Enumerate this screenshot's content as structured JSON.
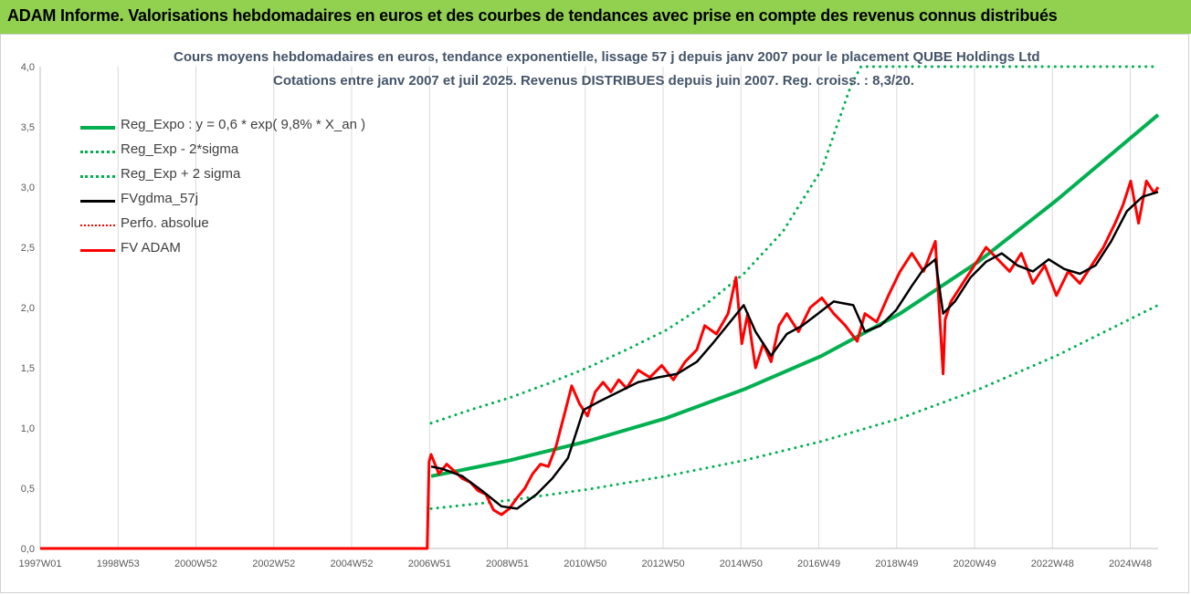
{
  "header": {
    "title": "ADAM Informe. Valorisations hebdomadaires en euros et des courbes de tendances avec prise en compte des revenus connus distribués",
    "background": "#92d050"
  },
  "chart_data": {
    "type": "line",
    "title": "Cours moyens hebdomadaires en euros, tendance exponentielle, lissage 57 j depuis janv 2007 pour le placement QUBE Holdings Ltd",
    "subtitle": "Cotations entre janv 2007 et juil 2025. Revenus DISTRIBUES depuis juin 2007. Reg. croiss. : 8,3/20.",
    "xlabel": "",
    "ylabel": "",
    "ylim": [
      0,
      4
    ],
    "y_ticks": [
      "0,0",
      "0,5",
      "1,0",
      "1,5",
      "2,0",
      "2,5",
      "3,0",
      "3,5",
      "4,0"
    ],
    "x_ticks": [
      "1997W01",
      "1998W53",
      "2000W52",
      "2002W52",
      "2004W52",
      "2006W51",
      "2008W51",
      "2010W50",
      "2012W50",
      "2014W50",
      "2016W49",
      "2018W49",
      "2020W49",
      "2022W48",
      "2024W48"
    ],
    "xlim": [
      1997.0,
      2025.6
    ],
    "grid": "vertical",
    "legend_position": "top-left",
    "series": [
      {
        "name": "Reg_Expo : y = 0,6 * exp( 9,8% *  X_an )",
        "color": "#00b050",
        "style": "solid",
        "width": 4,
        "x": [
          2007.0,
          2009.0,
          2011.0,
          2013.0,
          2015.0,
          2017.0,
          2019.0,
          2021.0,
          2023.0,
          2025.6
        ],
        "y": [
          0.6,
          0.73,
          0.89,
          1.08,
          1.32,
          1.6,
          1.95,
          2.38,
          2.89,
          3.6
        ]
      },
      {
        "name": "Reg_Exp - 2*sigma",
        "color": "#00b050",
        "style": "dotted",
        "width": 3,
        "x": [
          2007.0,
          2009.0,
          2011.0,
          2013.0,
          2015.0,
          2017.0,
          2019.0,
          2021.0,
          2023.0,
          2025.6
        ],
        "y": [
          0.33,
          0.4,
          0.49,
          0.6,
          0.73,
          0.89,
          1.08,
          1.32,
          1.6,
          2.02
        ]
      },
      {
        "name": "Reg_Exp + 2 sigma",
        "color": "#00b050",
        "style": "dotted",
        "width": 3,
        "x": [
          2007.0,
          2008.0,
          2009.0,
          2010.0,
          2011.0,
          2012.0,
          2013.0,
          2014.0,
          2015.0,
          2016.0,
          2017.0,
          2017.75,
          2018.0,
          2021.0,
          2025.6
        ],
        "y": [
          1.04,
          1.15,
          1.25,
          1.37,
          1.5,
          1.65,
          1.81,
          2.02,
          2.28,
          2.63,
          3.15,
          3.85,
          4.0,
          4.0,
          4.0
        ]
      },
      {
        "name": "FVgdma_57j",
        "color": "#000000",
        "style": "solid",
        "width": 2.5,
        "x": [
          2007.0,
          2007.3,
          2007.8,
          2008.3,
          2008.8,
          2009.2,
          2009.7,
          2010.1,
          2010.5,
          2010.9,
          2011.3,
          2011.8,
          2012.3,
          2012.8,
          2013.3,
          2013.8,
          2014.2,
          2014.7,
          2015.0,
          2015.3,
          2015.7,
          2016.1,
          2016.5,
          2016.9,
          2017.3,
          2017.8,
          2018.1,
          2018.5,
          2018.9,
          2019.3,
          2019.6,
          2019.9,
          2020.1,
          2020.4,
          2020.8,
          2021.2,
          2021.6,
          2022.0,
          2022.4,
          2022.8,
          2023.2,
          2023.6,
          2024.0,
          2024.4,
          2024.8,
          2025.2,
          2025.6
        ],
        "y": [
          0.68,
          0.66,
          0.6,
          0.48,
          0.35,
          0.33,
          0.45,
          0.58,
          0.75,
          1.15,
          1.22,
          1.3,
          1.38,
          1.42,
          1.45,
          1.55,
          1.7,
          1.9,
          2.02,
          1.8,
          1.6,
          1.78,
          1.85,
          1.95,
          2.05,
          2.02,
          1.8,
          1.85,
          1.98,
          2.18,
          2.32,
          2.4,
          1.95,
          2.05,
          2.25,
          2.38,
          2.45,
          2.35,
          2.3,
          2.4,
          2.32,
          2.28,
          2.35,
          2.55,
          2.8,
          2.92,
          2.96
        ]
      },
      {
        "name": "Perfo. absolue",
        "color": "#ff0000",
        "style": "dotted",
        "width": 2,
        "x": [],
        "y": []
      },
      {
        "name": "FV ADAM",
        "color": "#ff0000",
        "style": "solid",
        "width": 3,
        "x": [
          1997.0,
          2006.9,
          2006.95,
          2007.0,
          2007.2,
          2007.4,
          2007.6,
          2007.8,
          2008.0,
          2008.2,
          2008.4,
          2008.6,
          2008.8,
          2009.0,
          2009.2,
          2009.4,
          2009.6,
          2009.8,
          2010.0,
          2010.2,
          2010.4,
          2010.6,
          2010.8,
          2011.0,
          2011.2,
          2011.4,
          2011.6,
          2011.8,
          2012.0,
          2012.3,
          2012.6,
          2012.9,
          2013.2,
          2013.5,
          2013.8,
          2014.0,
          2014.3,
          2014.6,
          2014.8,
          2014.95,
          2015.1,
          2015.3,
          2015.5,
          2015.7,
          2015.9,
          2016.1,
          2016.4,
          2016.7,
          2017.0,
          2017.3,
          2017.6,
          2017.9,
          2018.1,
          2018.4,
          2018.7,
          2019.0,
          2019.3,
          2019.6,
          2019.9,
          2020.0,
          2020.1,
          2020.15,
          2020.3,
          2020.6,
          2020.9,
          2021.2,
          2021.5,
          2021.8,
          2022.1,
          2022.4,
          2022.7,
          2023.0,
          2023.3,
          2023.6,
          2023.9,
          2024.2,
          2024.5,
          2024.7,
          2024.9,
          2025.1,
          2025.3,
          2025.5,
          2025.6
        ],
        "y": [
          0.0,
          0.0,
          0.72,
          0.78,
          0.62,
          0.7,
          0.64,
          0.58,
          0.55,
          0.48,
          0.45,
          0.32,
          0.28,
          0.33,
          0.42,
          0.5,
          0.62,
          0.7,
          0.68,
          0.85,
          1.1,
          1.35,
          1.2,
          1.1,
          1.3,
          1.38,
          1.3,
          1.4,
          1.33,
          1.48,
          1.42,
          1.52,
          1.4,
          1.55,
          1.65,
          1.85,
          1.78,
          1.95,
          2.25,
          1.7,
          1.95,
          1.5,
          1.7,
          1.55,
          1.85,
          1.95,
          1.8,
          2.0,
          2.08,
          1.95,
          1.85,
          1.72,
          1.95,
          1.88,
          2.1,
          2.3,
          2.45,
          2.3,
          2.55,
          2.0,
          1.45,
          1.9,
          2.05,
          2.2,
          2.35,
          2.5,
          2.4,
          2.3,
          2.45,
          2.2,
          2.35,
          2.1,
          2.3,
          2.2,
          2.35,
          2.5,
          2.7,
          2.85,
          3.05,
          2.7,
          3.05,
          2.95,
          3.0
        ]
      }
    ]
  }
}
